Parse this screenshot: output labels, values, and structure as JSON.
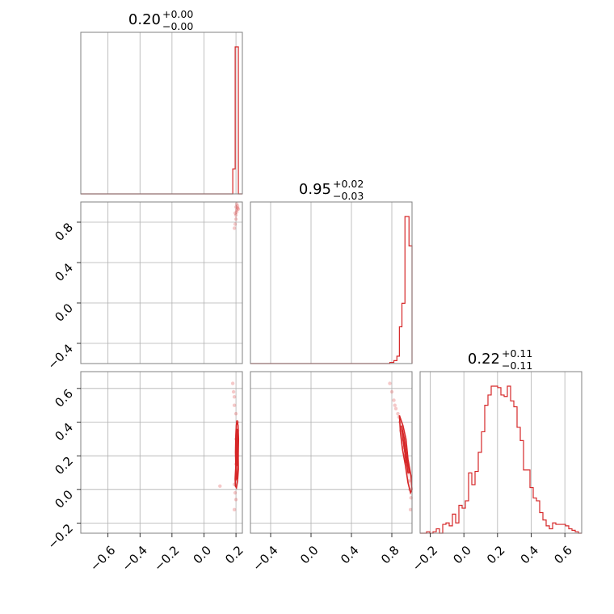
{
  "colors": {
    "accent": "#d62728",
    "grid": "#b0b0b0",
    "frame": "#808080"
  },
  "chart_data": {
    "type": "corner",
    "grid": true,
    "parameters": [
      {
        "title": {
          "value": "0.20",
          "plus": "+0.00",
          "minus": "−0.00"
        },
        "range": [
          -0.77,
          0.24
        ],
        "ticks": [
          -0.6,
          -0.4,
          -0.2,
          0.0,
          0.2
        ],
        "tick_labels": [
          "−0.6",
          "−0.4",
          "−0.2",
          "0.0",
          "0.2"
        ],
        "hist": {
          "type": "step",
          "bins": [
            [
              -0.77,
              0.18,
              0.0
            ],
            [
              0.18,
              0.195,
              0.17
            ],
            [
              0.195,
              0.215,
              1.0
            ],
            [
              0.215,
              0.24,
              0.0
            ]
          ]
        }
      },
      {
        "title": {
          "value": "0.95",
          "plus": "+0.02",
          "minus": "−0.03"
        },
        "range": [
          -0.6,
          1.0
        ],
        "ticks": [
          -0.4,
          0.0,
          0.4,
          0.8
        ],
        "tick_labels": [
          "−0.4",
          "0.0",
          "0.4",
          "0.8"
        ],
        "hist": {
          "type": "step",
          "bins": [
            [
              -0.6,
              0.78,
              0.0
            ],
            [
              0.78,
              0.82,
              0.008
            ],
            [
              0.82,
              0.85,
              0.02
            ],
            [
              0.85,
              0.875,
              0.05
            ],
            [
              0.875,
              0.9,
              0.25
            ],
            [
              0.9,
              0.93,
              0.41
            ],
            [
              0.93,
              0.97,
              1.0
            ],
            [
              0.97,
              1.0,
              0.8
            ]
          ]
        }
      },
      {
        "title": {
          "value": "0.22",
          "plus": "+0.11",
          "minus": "−0.11"
        },
        "range": [
          -0.26,
          0.7
        ],
        "ticks": [
          -0.2,
          0.0,
          0.2,
          0.4,
          0.6
        ],
        "tick_labels": [
          "−0.2",
          "0.0",
          "0.2",
          "0.4",
          "0.6"
        ],
        "hist": {
          "type": "step",
          "counts": [
            0.0,
            0.0,
            0.01,
            0.0,
            0.01,
            0.03,
            0.0,
            0.06,
            0.07,
            0.05,
            0.13,
            0.07,
            0.19,
            0.17,
            0.22,
            0.41,
            0.33,
            0.42,
            0.55,
            0.69,
            0.87,
            0.94,
            1.0,
            1.0,
            0.99,
            0.94,
            0.93,
            1.0,
            0.9,
            0.86,
            0.72,
            0.63,
            0.43,
            0.43,
            0.31,
            0.24,
            0.22,
            0.14,
            0.09,
            0.05,
            0.03,
            0.07,
            0.06,
            0.06,
            0.06,
            0.05,
            0.03,
            0.02,
            0.01,
            0.0
          ]
        }
      }
    ],
    "scatter_panels": [
      {
        "x_param": 0,
        "y_param": 1,
        "points": [
          [
            0.19,
            0.74
          ],
          [
            0.195,
            0.78
          ],
          [
            0.2,
            0.83
          ],
          [
            0.2,
            0.87
          ],
          [
            0.205,
            0.9
          ],
          [
            0.205,
            0.92
          ],
          [
            0.21,
            0.94
          ],
          [
            0.21,
            0.96
          ],
          [
            0.205,
            0.98
          ],
          [
            0.215,
            0.93
          ],
          [
            0.2,
            0.95
          ],
          [
            0.195,
            0.89
          ]
        ]
      },
      {
        "x_param": 0,
        "y_param": 2,
        "points": [
          [
            0.18,
            0.63
          ],
          [
            0.185,
            0.58
          ],
          [
            0.19,
            0.55
          ],
          [
            0.19,
            0.5
          ],
          [
            0.2,
            0.45
          ],
          [
            0.21,
            0.4
          ],
          [
            0.21,
            0.35
          ],
          [
            0.2,
            0.3
          ],
          [
            0.205,
            0.25
          ],
          [
            0.21,
            0.2
          ],
          [
            0.2,
            0.15
          ],
          [
            0.205,
            0.1
          ],
          [
            0.2,
            0.06
          ],
          [
            0.19,
            0.03
          ],
          [
            0.195,
            -0.02
          ],
          [
            0.2,
            -0.06
          ],
          [
            0.19,
            -0.12
          ],
          [
            0.1,
            0.02
          ]
        ],
        "contours": [
          [
            [
              0.207,
              0.41
            ],
            [
              0.213,
              0.38
            ],
            [
              0.216,
              0.3
            ],
            [
              0.214,
              0.2
            ],
            [
              0.215,
              0.12
            ],
            [
              0.21,
              0.05
            ],
            [
              0.203,
              0.01
            ],
            [
              0.196,
              0.02
            ],
            [
              0.195,
              0.07
            ],
            [
              0.199,
              0.14
            ],
            [
              0.197,
              0.22
            ],
            [
              0.199,
              0.32
            ],
            [
              0.202,
              0.38
            ],
            [
              0.207,
              0.41
            ]
          ],
          [
            [
              0.207,
              0.36
            ],
            [
              0.211,
              0.3
            ],
            [
              0.211,
              0.2
            ],
            [
              0.211,
              0.13
            ],
            [
              0.207,
              0.07
            ],
            [
              0.201,
              0.06
            ],
            [
              0.2,
              0.13
            ],
            [
              0.201,
              0.22
            ],
            [
              0.203,
              0.31
            ],
            [
              0.207,
              0.36
            ]
          ],
          [
            [
              0.206,
              0.3
            ],
            [
              0.208,
              0.22
            ],
            [
              0.207,
              0.15
            ],
            [
              0.204,
              0.14
            ],
            [
              0.204,
              0.22
            ],
            [
              0.206,
              0.3
            ]
          ]
        ]
      },
      {
        "x_param": 1,
        "y_param": 2,
        "points": [
          [
            0.78,
            0.63
          ],
          [
            0.8,
            0.58
          ],
          [
            0.82,
            0.53
          ],
          [
            0.84,
            0.48
          ],
          [
            0.86,
            0.45
          ],
          [
            0.88,
            0.4
          ],
          [
            0.89,
            0.35
          ],
          [
            0.91,
            0.3
          ],
          [
            0.92,
            0.25
          ],
          [
            0.93,
            0.2
          ],
          [
            0.95,
            0.15
          ],
          [
            0.96,
            0.1
          ],
          [
            0.97,
            0.05
          ],
          [
            0.98,
            0.0
          ],
          [
            0.99,
            -0.05
          ],
          [
            0.985,
            -0.12
          ],
          [
            0.83,
            0.5
          ],
          [
            0.87,
            0.43
          ]
        ],
        "contours": [
          [
            [
              0.875,
              0.44
            ],
            [
              0.91,
              0.38
            ],
            [
              0.94,
              0.3
            ],
            [
              0.96,
              0.18
            ],
            [
              0.99,
              0.08
            ],
            [
              1.0,
              0.0
            ],
            [
              0.985,
              -0.02
            ],
            [
              0.96,
              0.04
            ],
            [
              0.935,
              0.14
            ],
            [
              0.905,
              0.24
            ],
            [
              0.885,
              0.34
            ],
            [
              0.875,
              0.44
            ]
          ],
          [
            [
              0.895,
              0.38
            ],
            [
              0.925,
              0.3
            ],
            [
              0.945,
              0.2
            ],
            [
              0.975,
              0.1
            ],
            [
              0.96,
              0.1
            ],
            [
              0.935,
              0.2
            ],
            [
              0.91,
              0.3
            ],
            [
              0.895,
              0.38
            ]
          ],
          [
            [
              0.91,
              0.3
            ],
            [
              0.935,
              0.24
            ],
            [
              0.95,
              0.16
            ],
            [
              0.94,
              0.16
            ],
            [
              0.925,
              0.24
            ],
            [
              0.91,
              0.3
            ]
          ]
        ]
      }
    ]
  }
}
